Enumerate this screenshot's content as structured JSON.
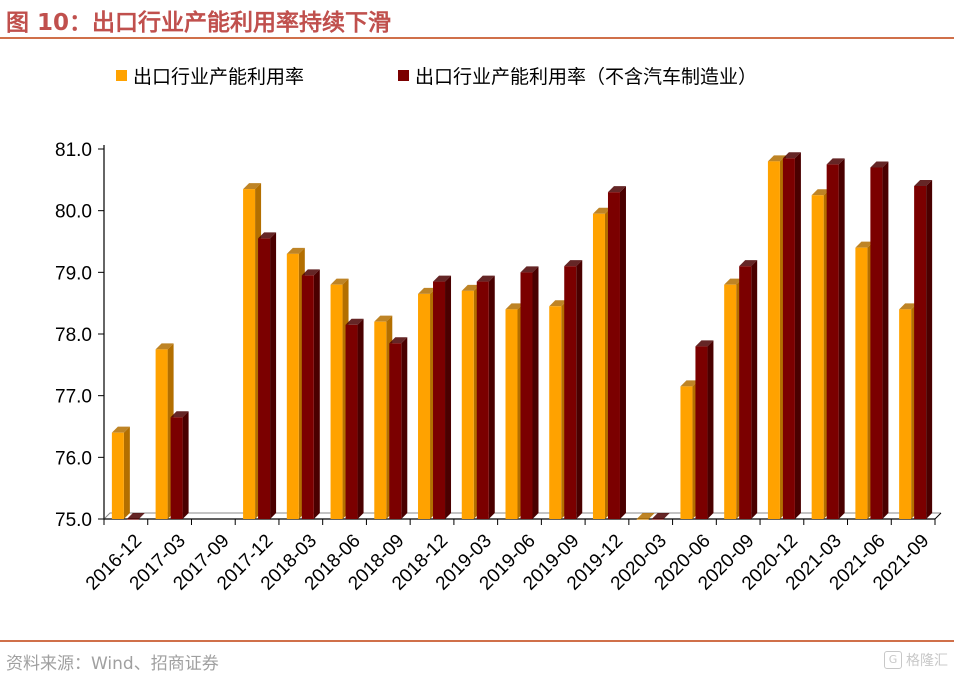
{
  "header": {
    "title": "图 10：出口行业产能利用率持续下滑"
  },
  "footer": {
    "source": "资料来源：Wind、招商证券",
    "watermark": "格隆汇"
  },
  "colors": {
    "accent": "#c0504d",
    "rule": "#d0704a",
    "series1_front": "#ffa200",
    "series1_side": "#b36f00",
    "series2_front": "#7b0000",
    "series2_side": "#4a0000"
  },
  "chart_data": {
    "type": "bar",
    "title": "",
    "xlabel": "",
    "ylabel": "",
    "ylim": [
      75.0,
      81.0
    ],
    "yticks": [
      "75.0",
      "76.0",
      "77.0",
      "78.0",
      "79.0",
      "80.0",
      "81.0"
    ],
    "legend_position": "top",
    "categories": [
      "2016-12",
      "2017-03",
      "2017-09",
      "2017-12",
      "2018-03",
      "2018-06",
      "2018-09",
      "2018-12",
      "2019-03",
      "2019-06",
      "2019-09",
      "2019-12",
      "2020-03",
      "2020-06",
      "2020-09",
      "2020-12",
      "2021-03",
      "2021-06",
      "2021-09"
    ],
    "series": [
      {
        "name": "出口行业产能利用率",
        "values": [
          76.4,
          77.75,
          null,
          80.35,
          79.3,
          78.8,
          78.2,
          78.65,
          78.7,
          78.4,
          78.45,
          79.95,
          75.0,
          77.15,
          78.8,
          80.8,
          80.25,
          79.4,
          78.4
        ]
      },
      {
        "name": "出口行业产能利用率（不含汽车制造业）",
        "values": [
          75.0,
          76.65,
          null,
          79.55,
          78.95,
          78.15,
          77.85,
          78.85,
          78.85,
          79.0,
          79.1,
          80.3,
          75.0,
          77.8,
          79.1,
          80.85,
          80.75,
          80.7,
          80.4
        ]
      }
    ]
  }
}
